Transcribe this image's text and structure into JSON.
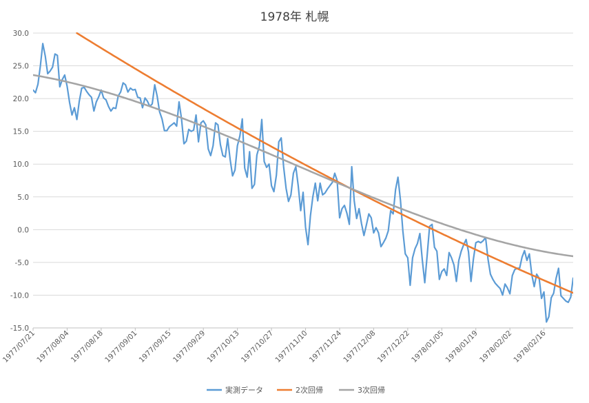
{
  "chart_data": {
    "type": "line",
    "title": "1978年 札幌",
    "xlabel": "",
    "ylabel": "",
    "ylim": [
      -15,
      30
    ],
    "yticks": [
      "30.0",
      "25.0",
      "20.0",
      "15.0",
      "10.0",
      "5.0",
      "0.0",
      "-5.0",
      "-10.0",
      "-15.0"
    ],
    "x_start": "1977/07/21",
    "x_end": "1978/02/28",
    "xticks": [
      "1977/07/21",
      "1977/08/04",
      "1977/08/18",
      "1977/09/01",
      "1977/09/15",
      "1977/09/29",
      "1977/10/13",
      "1977/10/27",
      "1977/11/10",
      "1977/11/24",
      "1977/12/08",
      "1977/12/22",
      "1978/01/05",
      "1978/01/19",
      "1978/02/02",
      "1978/02/16"
    ],
    "grid": true,
    "legend_position": "bottom",
    "series": [
      {
        "name": "実測データ",
        "color": "#5B9BD5",
        "values": [
          21.3,
          20.9,
          22.2,
          25.0,
          28.4,
          26.5,
          23.8,
          24.2,
          24.8,
          26.8,
          26.6,
          21.8,
          22.9,
          23.6,
          21.9,
          19.4,
          17.5,
          18.6,
          16.8,
          19.6,
          21.6,
          21.7,
          21.1,
          20.6,
          20.2,
          18.1,
          19.5,
          20.3,
          21.3,
          20.1,
          19.8,
          18.8,
          18.1,
          18.6,
          18.5,
          20.4,
          21.0,
          22.4,
          22.1,
          21.0,
          21.6,
          21.3,
          21.4,
          20.2,
          20.1,
          18.6,
          20.1,
          19.6,
          18.8,
          19.2,
          22.1,
          20.4,
          18.0,
          16.9,
          15.1,
          15.1,
          15.7,
          16.0,
          16.3,
          15.8,
          19.5,
          17.0,
          13.1,
          13.5,
          15.3,
          15.0,
          15.2,
          17.5,
          13.4,
          16.3,
          16.6,
          16.0,
          12.3,
          11.3,
          12.8,
          16.3,
          16.0,
          13.0,
          11.3,
          11.1,
          13.9,
          10.7,
          8.2,
          9.1,
          12.8,
          14.3,
          16.9,
          9.4,
          8.0,
          11.9,
          6.3,
          6.9,
          11.4,
          12.7,
          16.8,
          10.4,
          9.5,
          10.0,
          6.7,
          5.8,
          8.3,
          13.4,
          14.0,
          9.6,
          6.3,
          4.3,
          5.3,
          8.6,
          9.6,
          6.7,
          2.9,
          5.7,
          0.4,
          -2.3,
          2.1,
          5.0,
          7.1,
          4.4,
          7.1,
          5.3,
          5.6,
          6.2,
          6.7,
          7.2,
          8.6,
          7.5,
          1.8,
          3.2,
          3.7,
          2.5,
          0.8,
          9.6,
          4.4,
          1.7,
          3.2,
          0.9,
          -0.9,
          0.7,
          2.4,
          1.8,
          -0.5,
          0.3,
          -0.5,
          -2.6,
          -2.0,
          -1.3,
          -0.2,
          2.9,
          2.4,
          6.1,
          8.0,
          4.5,
          -0.2,
          -3.7,
          -4.3,
          -8.5,
          -4.3,
          -2.9,
          -2.1,
          -0.6,
          -4.6,
          -8.1,
          -3.9,
          0.5,
          0.8,
          -2.7,
          -3.3,
          -7.6,
          -6.4,
          -6.0,
          -7.0,
          -3.5,
          -4.3,
          -5.4,
          -7.9,
          -4.7,
          -3.3,
          -2.3,
          -1.5,
          -3.4,
          -7.9,
          -4.5,
          -2.0,
          -1.8,
          -2.0,
          -1.7,
          -1.2,
          -4.5,
          -6.8,
          -7.6,
          -8.2,
          -8.6,
          -9.0,
          -10.0,
          -8.3,
          -8.9,
          -9.8,
          -7.0,
          -6.1,
          -5.9,
          -5.9,
          -4.2,
          -3.2,
          -4.7,
          -3.7,
          -6.9,
          -8.7,
          -6.8,
          -7.4,
          -10.5,
          -9.5,
          -14.1,
          -13.3,
          -10.4,
          -9.7,
          -7.4,
          -5.9,
          -10.1,
          -10.5,
          -10.9,
          -11.1,
          -10.3,
          -7.4
        ]
      },
      {
        "name": "2次回帰",
        "color": "#ED7D31",
        "fit": {
          "type": "poly2",
          "t0": 18,
          "t1": 221,
          "y0": 30.0,
          "y1": -9.5,
          "ym": 8.4
        }
      },
      {
        "name": "3次回帰",
        "color": "#A5A5A5",
        "fit": {
          "type": "poly3",
          "a": 23.6,
          "b": -0.0628,
          "c": -0.0009,
          "d": 2.8e-06
        }
      }
    ]
  }
}
